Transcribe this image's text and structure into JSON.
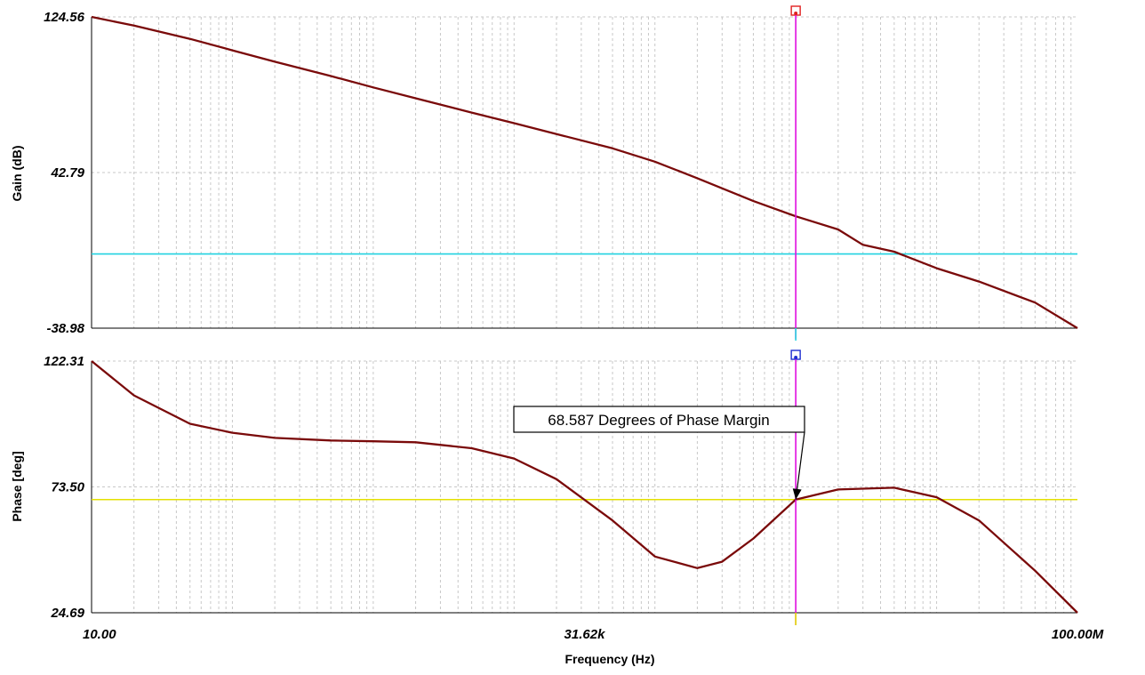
{
  "chart_data": {
    "type": "line",
    "x_axis": {
      "label": "Frequency (Hz)",
      "scale": "log",
      "range": [
        10,
        100000000
      ],
      "tick_labels": [
        "10.00",
        "31.62k",
        "100.00M"
      ],
      "tick_values": [
        10,
        31620,
        100000000
      ]
    },
    "panels": [
      {
        "id": "gain",
        "ylabel": "Gain (dB)",
        "ylim": [
          -38.98,
          124.56
        ],
        "y_tick_labels": [
          "124.56",
          "42.79",
          "-38.98"
        ],
        "y_tick_values": [
          124.56,
          42.79,
          -38.98
        ],
        "grid": true,
        "series": [
          {
            "color": "#7a0a0a",
            "x": [
              10,
              20,
              50,
              100,
              200,
              500,
              1000,
              2000,
              5000,
              10000,
              20000,
              50000,
              100000,
              200000,
              500000,
              1000000,
              2000000,
              3000000,
              5000000,
              10000000,
              20000000,
              50000000,
              100000000
            ],
            "y": [
              124.56,
              120,
              113,
              107,
              101,
              93.5,
              87.5,
              81.8,
              74.3,
              68.7,
              63.0,
              55.5,
              48.5,
              39.8,
              27.8,
              19.8,
              12.9,
              4.8,
              1.2,
              -7.5,
              -14.5,
              -25.5,
              -38.98
            ]
          }
        ],
        "reference_lines": [
          {
            "axis": "y",
            "value": 0,
            "color": "#22d3e0"
          }
        ]
      },
      {
        "id": "phase",
        "ylabel": "Phase [deg]",
        "ylim": [
          24.69,
          122.31
        ],
        "y_tick_labels": [
          "122.31",
          "73.50",
          "24.69"
        ],
        "y_tick_values": [
          122.31,
          73.5,
          24.69
        ],
        "grid": true,
        "series": [
          {
            "color": "#7a0a0a",
            "x": [
              10,
              20,
              50,
              100,
              200,
              500,
              1000,
              2000,
              5000,
              10000,
              20000,
              50000,
              100000,
              200000,
              300000,
              500000,
              1000000,
              2000000,
              5000000,
              10000000,
              20000000,
              50000000,
              100000000
            ],
            "y": [
              122.31,
              109,
              98,
              94.5,
              92.5,
              91.5,
              91.2,
              90.8,
              88.5,
              84.5,
              76.5,
              60.5,
              46.5,
              42,
              44.5,
              53.5,
              68.587,
              72.5,
              73.2,
              69.5,
              60.5,
              41,
              24.69
            ]
          }
        ],
        "reference_lines": [
          {
            "axis": "y",
            "value": 68.587,
            "color": "#e4e000"
          }
        ]
      }
    ],
    "cursor": {
      "axis": "x",
      "value": 1000000,
      "color": "#e00ee0"
    },
    "annotations": [
      {
        "text": "68.587 Degrees of Phase Margin",
        "panel": "phase",
        "target_x": 1000000,
        "target_y": 68.587
      }
    ]
  }
}
